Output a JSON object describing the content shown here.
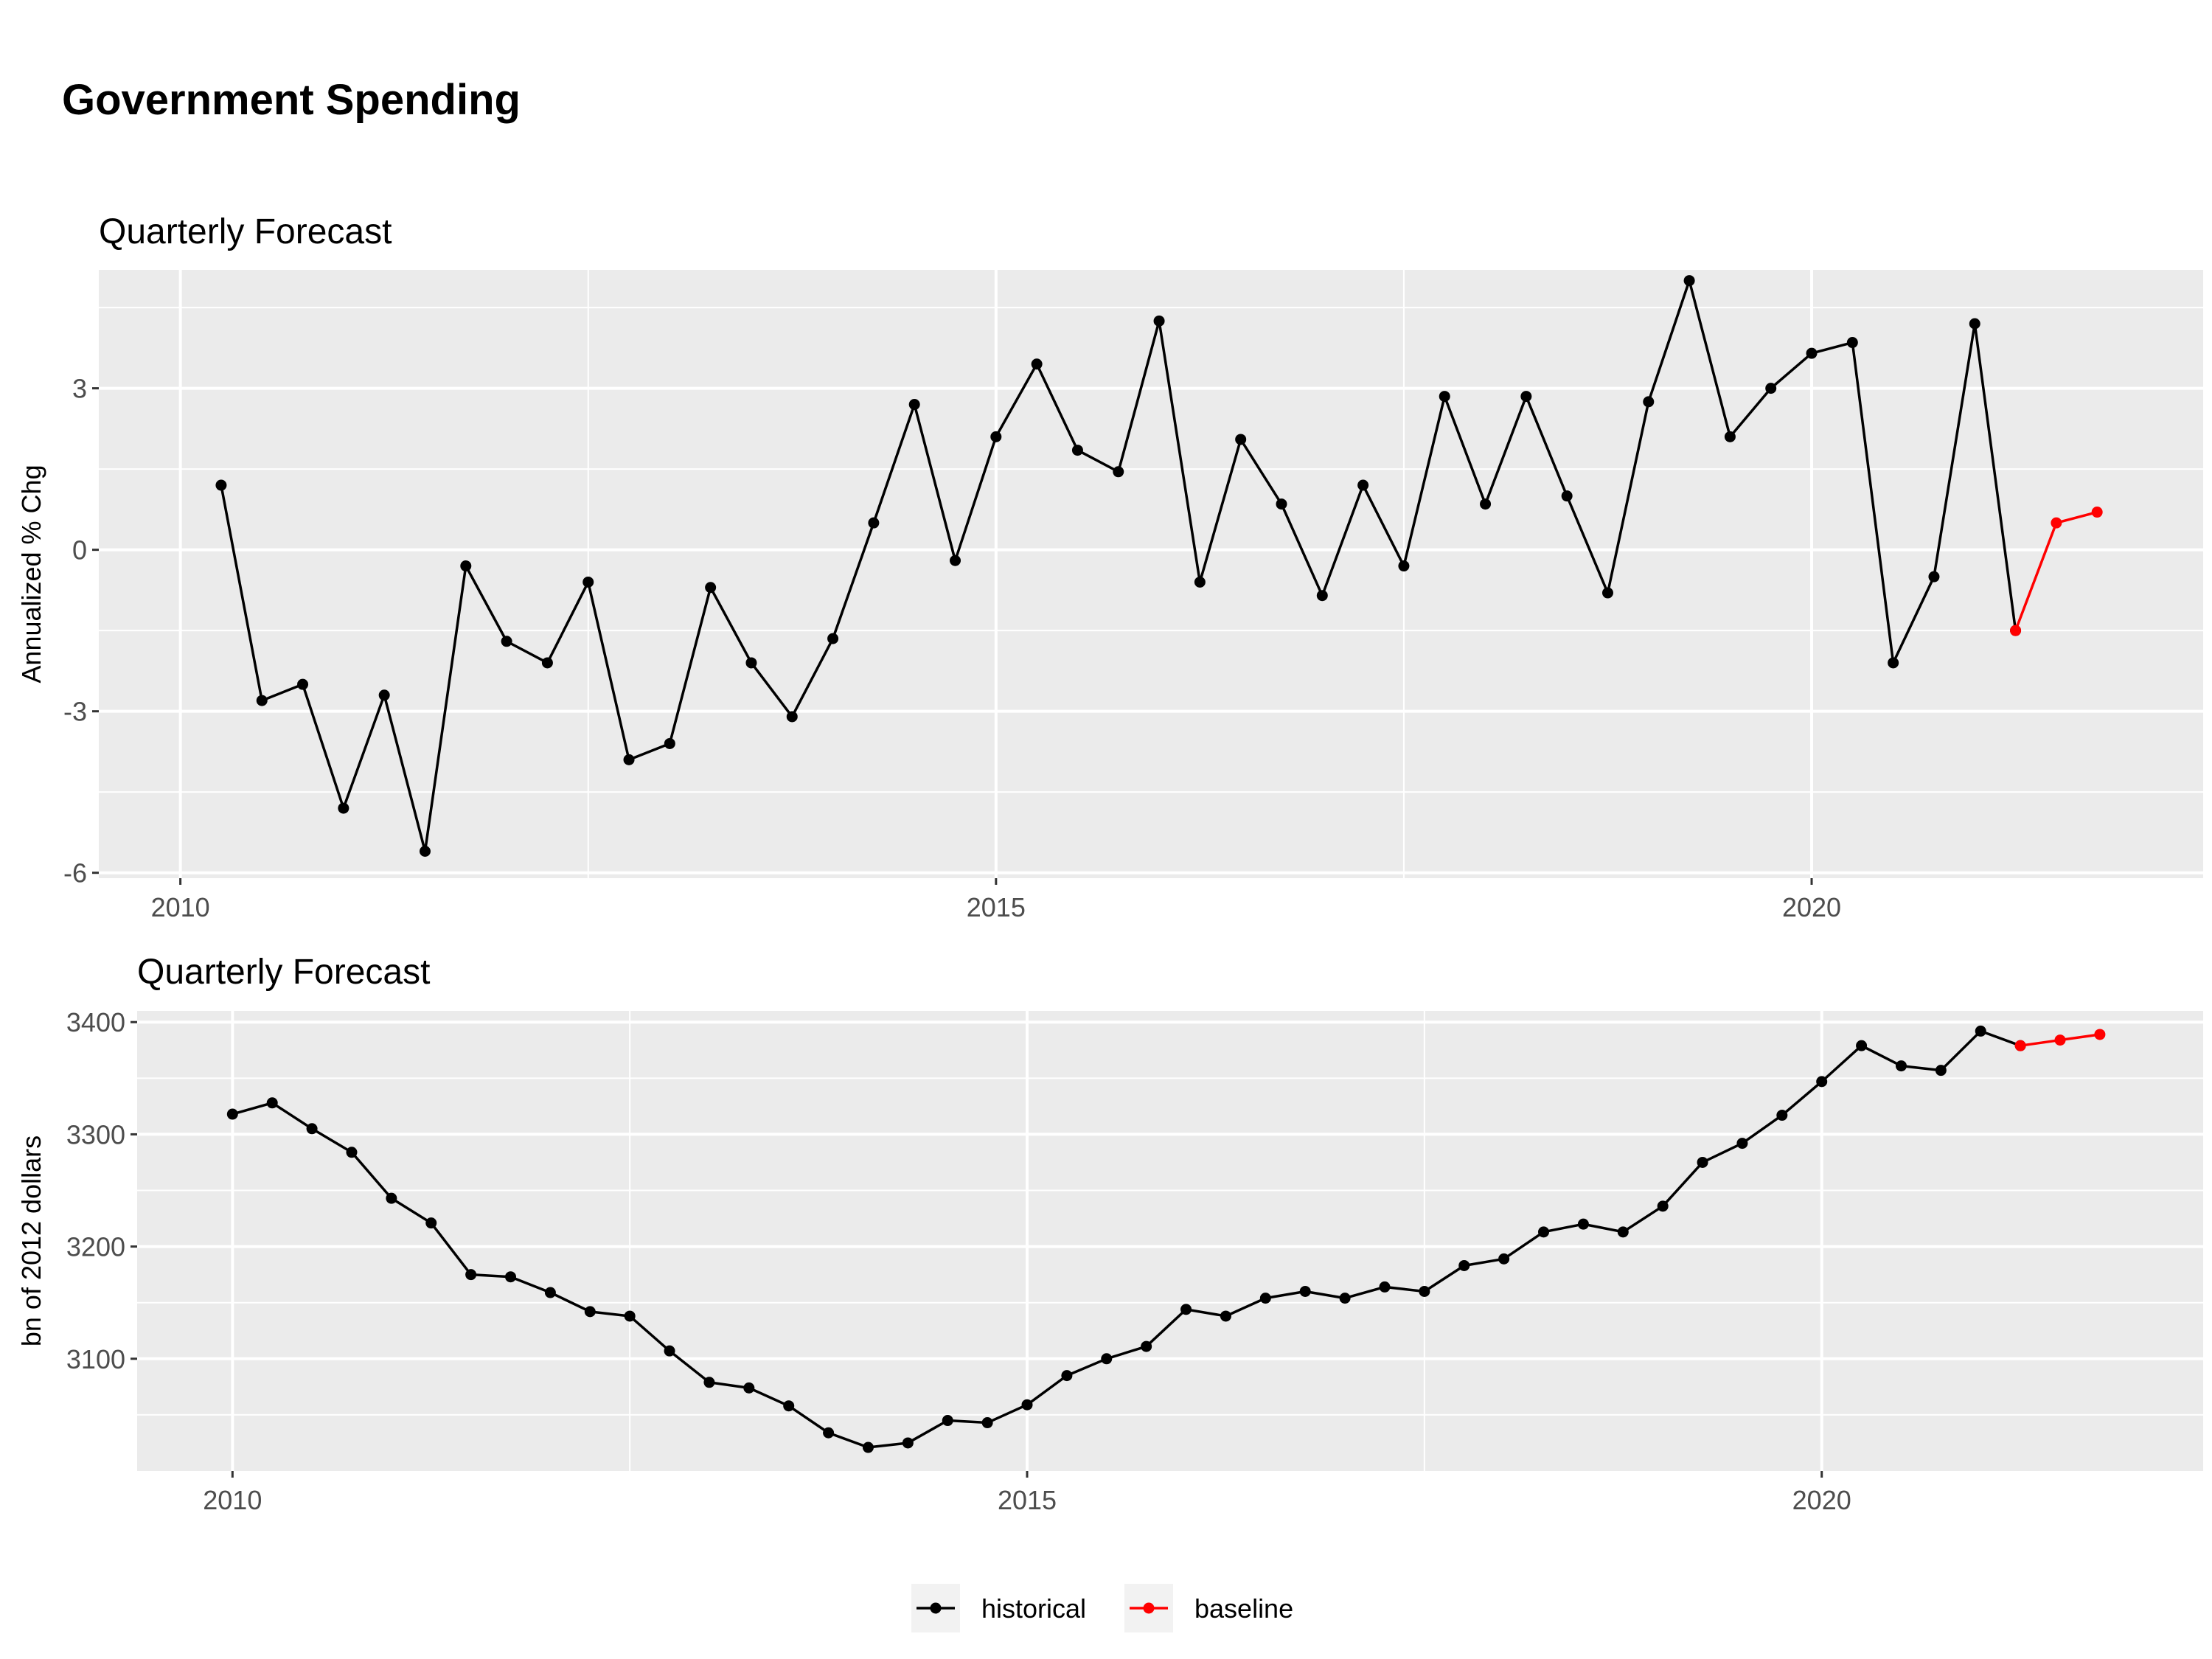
{
  "title": "Government Spending",
  "colors": {
    "historical": "#000000",
    "baseline": "#ff0000",
    "panel_background": "#ebebeb",
    "grid": "#ffffff"
  },
  "legend": {
    "position": "bottom",
    "items": [
      {
        "key": "historical",
        "label": "historical",
        "color": "#000000"
      },
      {
        "key": "baseline",
        "label": "baseline",
        "color": "#ff0000"
      }
    ]
  },
  "chart_data": [
    {
      "type": "line",
      "title": "Quarterly Forecast",
      "xlabel": "",
      "ylabel": "Annualized % Chg",
      "xlim": [
        2009.5,
        2022.4
      ],
      "ylim": [
        -6.1,
        5.2
      ],
      "x_ticks": [
        2010,
        2015,
        2020
      ],
      "x_tick_labels": [
        "2010",
        "2015",
        "2020"
      ],
      "y_ticks": [
        -6,
        -3,
        0,
        3
      ],
      "y_tick_labels": [
        "-6",
        "-3",
        "0",
        "3"
      ],
      "grid": true,
      "series": [
        {
          "name": "historical",
          "color": "#000000",
          "x": [
            2010.25,
            2010.5,
            2010.75,
            2011.0,
            2011.25,
            2011.5,
            2011.75,
            2012.0,
            2012.25,
            2012.5,
            2012.75,
            2013.0,
            2013.25,
            2013.5,
            2013.75,
            2014.0,
            2014.25,
            2014.5,
            2014.75,
            2015.0,
            2015.25,
            2015.5,
            2015.75,
            2016.0,
            2016.25,
            2016.5,
            2016.75,
            2017.0,
            2017.25,
            2017.5,
            2017.75,
            2018.0,
            2018.25,
            2018.5,
            2018.75,
            2019.0,
            2019.25,
            2019.5,
            2019.75,
            2020.0,
            2020.25,
            2020.5,
            2020.75,
            2021.0,
            2021.25
          ],
          "y": [
            1.2,
            -2.8,
            -2.5,
            -4.8,
            -2.7,
            -5.6,
            -0.3,
            -1.7,
            -2.1,
            -0.6,
            -3.9,
            -3.6,
            -0.7,
            -2.1,
            -3.1,
            -1.65,
            0.5,
            2.7,
            -0.2,
            2.1,
            3.45,
            1.85,
            1.45,
            4.25,
            -0.6,
            2.05,
            0.85,
            -0.85,
            1.2,
            -0.3,
            2.85,
            0.85,
            2.85,
            1.0,
            -0.8,
            2.75,
            5.0,
            2.1,
            3.0,
            3.65,
            3.85,
            -2.1,
            -0.5,
            4.2,
            -1.5
          ]
        },
        {
          "name": "baseline",
          "color": "#ff0000",
          "x": [
            2021.25,
            2021.5,
            2021.75
          ],
          "y": [
            -1.5,
            0.5,
            0.7
          ]
        }
      ]
    },
    {
      "type": "line",
      "title": "Quarterly Forecast",
      "xlabel": "",
      "ylabel": "bn of 2012 dollars",
      "xlim": [
        2009.4,
        2022.4
      ],
      "ylim": [
        3000,
        3410
      ],
      "x_ticks": [
        2010,
        2015,
        2020
      ],
      "x_tick_labels": [
        "2010",
        "2015",
        "2020"
      ],
      "y_ticks": [
        3100,
        3200,
        3300,
        3400
      ],
      "y_tick_labels": [
        "3100",
        "3200",
        "3300",
        "3400"
      ],
      "grid": true,
      "series": [
        {
          "name": "historical",
          "color": "#000000",
          "x": [
            2010.0,
            2010.25,
            2010.5,
            2010.75,
            2011.0,
            2011.25,
            2011.5,
            2011.75,
            2012.0,
            2012.25,
            2012.5,
            2012.75,
            2013.0,
            2013.25,
            2013.5,
            2013.75,
            2014.0,
            2014.25,
            2014.5,
            2014.75,
            2015.0,
            2015.25,
            2015.5,
            2015.75,
            2016.0,
            2016.25,
            2016.5,
            2016.75,
            2017.0,
            2017.25,
            2017.5,
            2017.75,
            2018.0,
            2018.25,
            2018.5,
            2018.75,
            2019.0,
            2019.25,
            2019.5,
            2019.75,
            2020.0,
            2020.25,
            2020.5,
            2020.75,
            2021.0,
            2021.25
          ],
          "y": [
            3318,
            3328,
            3305,
            3284,
            3243,
            3221,
            3175,
            3173,
            3159,
            3142,
            3138,
            3107,
            3079,
            3074,
            3058,
            3034,
            3021,
            3025,
            3045,
            3043,
            3059,
            3085,
            3100,
            3111,
            3144,
            3138,
            3154,
            3160,
            3154,
            3164,
            3160,
            3183,
            3189,
            3213,
            3220,
            3213,
            3236,
            3275,
            3292,
            3317,
            3347,
            3379,
            3361,
            3357,
            3392,
            3379
          ]
        },
        {
          "name": "baseline",
          "color": "#ff0000",
          "x": [
            2021.25,
            2021.5,
            2021.75
          ],
          "y": [
            3379,
            3384,
            3389
          ]
        }
      ]
    }
  ]
}
